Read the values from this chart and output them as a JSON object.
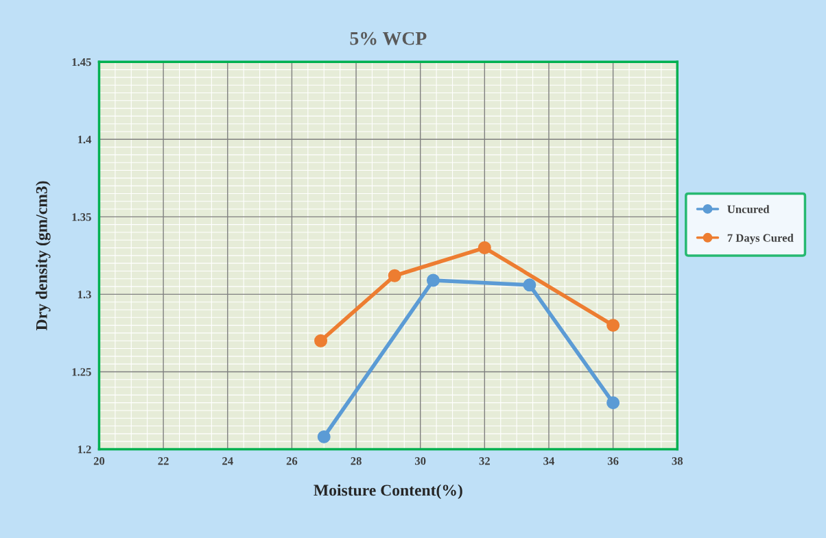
{
  "chart_data": {
    "type": "line",
    "title": "5% WCP",
    "xlabel": "Moisture Content(%)",
    "ylabel": "Dry density (gm/cm3)",
    "xlim": [
      20,
      38
    ],
    "xticks": [
      20,
      22,
      24,
      26,
      28,
      30,
      32,
      34,
      36,
      38
    ],
    "ylim": [
      1.2,
      1.45
    ],
    "yticks": [
      1.2,
      1.25,
      1.3,
      1.35,
      1.4,
      1.45
    ],
    "grid": true,
    "legend": "right",
    "marker": "circle",
    "line_style": "solid",
    "series": [
      {
        "name": "Uncured",
        "color": "#5b9bd5",
        "x": [
          27,
          30.4,
          33.4,
          36
        ],
        "values": [
          1.208,
          1.309,
          1.306,
          1.23
        ]
      },
      {
        "name": "7 Days Cured",
        "color": "#ed7d31",
        "x": [
          26.9,
          29.2,
          32,
          36
        ],
        "values": [
          1.27,
          1.312,
          1.33,
          1.28
        ]
      }
    ]
  }
}
